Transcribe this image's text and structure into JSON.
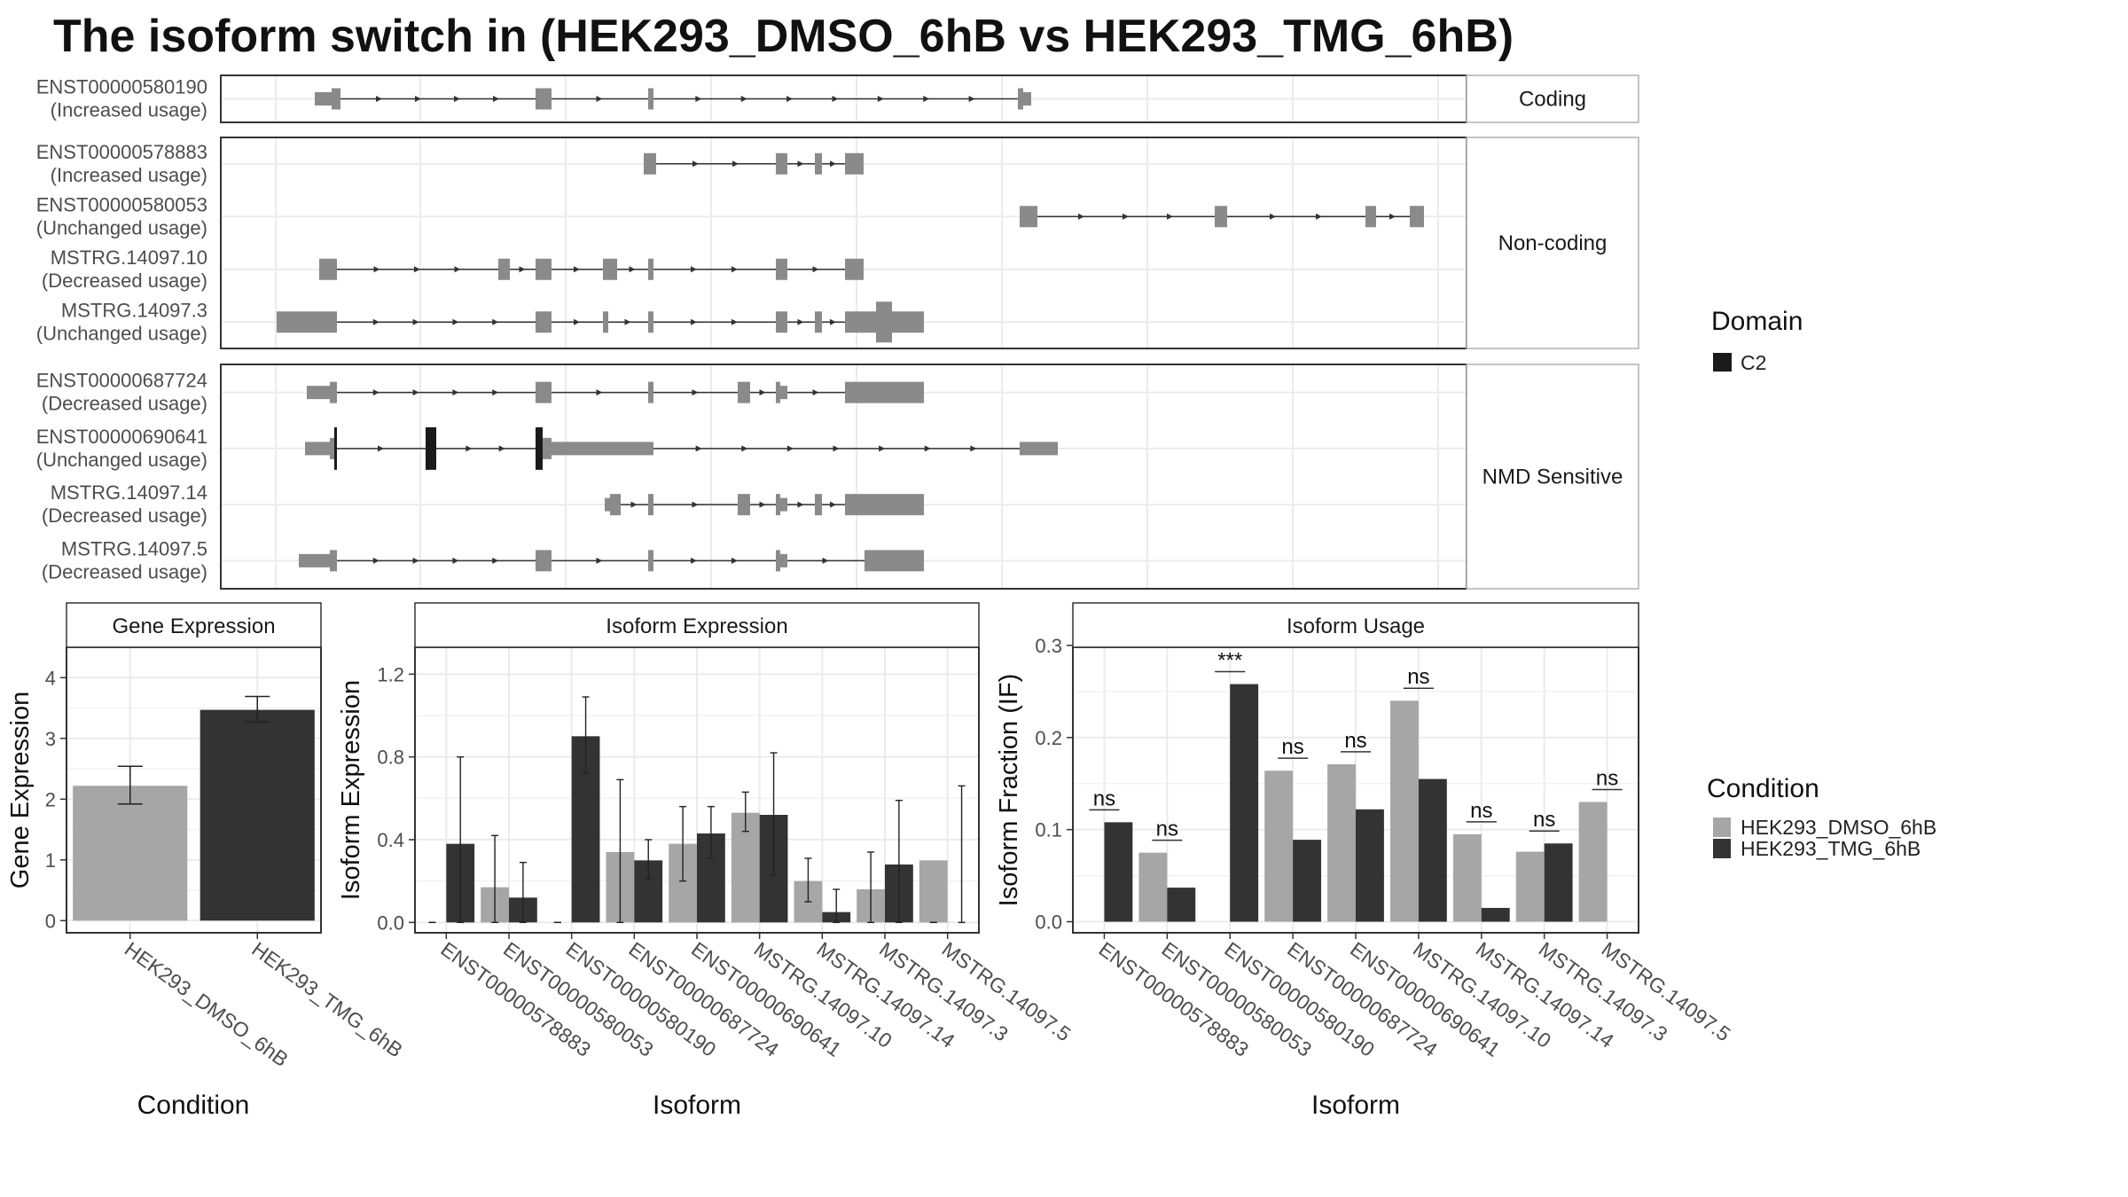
{
  "title": "The isoform switch in  (HEK293_DMSO_6hB vs HEK293_TMG_6hB)",
  "colors": {
    "exon": "#8a8a8a",
    "domain": "#1a1a1a",
    "dmso": "#a6a6a6",
    "tmg": "#333333",
    "grid": "#ebebeb",
    "strip_fill": "#ffffff",
    "panel_border": "#333333"
  },
  "transcript_panels": [
    {
      "strip": "Coding",
      "transcripts": [
        {
          "id": "ENST00000580190",
          "status": "(Increased usage)",
          "start": 355,
          "end": 1163,
          "exons": [
            [
              355,
              374,
              "s"
            ],
            [
              374,
              384,
              "t"
            ],
            [
              604,
              622,
              "t"
            ],
            [
              731,
              737,
              "t"
            ],
            [
              1148,
              1154,
              "t"
            ],
            [
              1154,
              1163,
              "s"
            ]
          ],
          "domains": []
        }
      ]
    },
    {
      "strip": "Non-coding",
      "transcripts": [
        {
          "id": "ENST00000578883",
          "status": "(Increased usage)",
          "start": 726,
          "end": 974,
          "exons": [
            [
              726,
              740,
              "t"
            ],
            [
              875,
              888,
              "t"
            ],
            [
              919,
              927,
              "t"
            ],
            [
              953,
              974,
              "t"
            ]
          ],
          "domains": []
        },
        {
          "id": "ENST00000580053",
          "status": "(Unchanged usage)",
          "start": 1150,
          "end": 1606,
          "exons": [
            [
              1150,
              1170,
              "t"
            ],
            [
              1370,
              1384,
              "t"
            ],
            [
              1540,
              1552,
              "t"
            ],
            [
              1590,
              1606,
              "t"
            ]
          ],
          "domains": []
        },
        {
          "id": "MSTRG.14097.10",
          "status": "(Decreased usage)",
          "start": 360,
          "end": 974,
          "exons": [
            [
              360,
              380,
              "t"
            ],
            [
              562,
              575,
              "t"
            ],
            [
              604,
              622,
              "t"
            ],
            [
              680,
              696,
              "t"
            ],
            [
              731,
              737,
              "t"
            ],
            [
              875,
              888,
              "t"
            ],
            [
              953,
              974,
              "t"
            ]
          ],
          "domains": []
        },
        {
          "id": "MSTRG.14097.3",
          "status": "(Unchanged usage)",
          "start": 312,
          "end": 1042,
          "exons": [
            [
              312,
              380,
              "t"
            ],
            [
              604,
              622,
              "t"
            ],
            [
              680,
              686,
              "t"
            ],
            [
              731,
              737,
              "t"
            ],
            [
              875,
              888,
              "t"
            ],
            [
              919,
              927,
              "t"
            ],
            [
              953,
              988,
              "t"
            ],
            [
              988,
              1006,
              "w"
            ],
            [
              1006,
              1042,
              "t"
            ]
          ],
          "domains": []
        }
      ]
    },
    {
      "strip": "NMD Sensitive",
      "transcripts": [
        {
          "id": "ENST00000687724",
          "status": "(Decreased usage)",
          "start": 346,
          "end": 1042,
          "exons": [
            [
              346,
              372,
              "s"
            ],
            [
              372,
              380,
              "t"
            ],
            [
              604,
              622,
              "t"
            ],
            [
              731,
              737,
              "t"
            ],
            [
              832,
              846,
              "t"
            ],
            [
              875,
              880,
              "t"
            ],
            [
              880,
              888,
              "s"
            ],
            [
              953,
              1042,
              "t"
            ]
          ],
          "domains": []
        },
        {
          "id": "ENST00000690641",
          "status": "(Unchanged usage)",
          "start": 344,
          "end": 1193,
          "exons": [
            [
              344,
              372,
              "s"
            ],
            [
              372,
              380,
              "t"
            ],
            [
              480,
              492,
              "t"
            ],
            [
              604,
              622,
              "t"
            ],
            [
              622,
              737,
              "s"
            ],
            [
              1150,
              1193,
              "s"
            ]
          ],
          "domains": [
            [
              377,
              380
            ],
            [
              480,
              492
            ],
            [
              604,
              612
            ]
          ]
        },
        {
          "id": "MSTRG.14097.14",
          "status": "(Decreased usage)",
          "start": 682,
          "end": 1042,
          "exons": [
            [
              682,
              688,
              "s"
            ],
            [
              688,
              700,
              "t"
            ],
            [
              731,
              737,
              "t"
            ],
            [
              832,
              846,
              "t"
            ],
            [
              875,
              880,
              "t"
            ],
            [
              880,
              888,
              "s"
            ],
            [
              919,
              927,
              "t"
            ],
            [
              953,
              1042,
              "t"
            ]
          ],
          "domains": []
        },
        {
          "id": "MSTRG.14097.5",
          "status": "(Decreased usage)",
          "start": 337,
          "end": 1042,
          "exons": [
            [
              337,
              372,
              "s"
            ],
            [
              372,
              380,
              "t"
            ],
            [
              604,
              622,
              "t"
            ],
            [
              731,
              737,
              "t"
            ],
            [
              875,
              880,
              "t"
            ],
            [
              880,
              888,
              "s"
            ],
            [
              975,
              1042,
              "t"
            ]
          ],
          "domains": []
        }
      ]
    }
  ],
  "domain_legend": {
    "title": "Domain",
    "items": [
      {
        "label": "C2",
        "color": "#1a1a1a"
      }
    ]
  },
  "condition_legend": {
    "title": "Condition",
    "items": [
      {
        "label": "HEK293_DMSO_6hB",
        "color": "#a6a6a6"
      },
      {
        "label": "HEK293_TMG_6hB",
        "color": "#333333"
      }
    ]
  },
  "chart_data": [
    {
      "type": "bar",
      "title": "Gene Expression",
      "xlabel": "Condition",
      "ylabel": "Gene Expression",
      "ylim": [
        -0.2,
        4.5
      ],
      "yticks": [
        0,
        1,
        2,
        3,
        4
      ],
      "categories": [
        "HEK293_DMSO_6hB",
        "HEK293_TMG_6hB"
      ],
      "values": [
        2.22,
        3.47
      ],
      "errors": [
        [
          1.92,
          2.54
        ],
        [
          3.27,
          3.69
        ]
      ],
      "grid": true
    },
    {
      "type": "bar",
      "title": "Isoform Expression",
      "xlabel": "Isoform",
      "ylabel": "Isoform Expression",
      "ylim": [
        -0.05,
        1.33
      ],
      "yticks": [
        0.0,
        0.4,
        0.8,
        1.2
      ],
      "categories": [
        "ENST00000578883",
        "ENST00000580053",
        "ENST00000580190",
        "ENST00000687724",
        "ENST00000690641",
        "MSTRG.14097.10",
        "MSTRG.14097.14",
        "MSTRG.14097.3",
        "MSTRG.14097.5"
      ],
      "series": [
        {
          "name": "HEK293_DMSO_6hB",
          "values": [
            0.0,
            0.17,
            0.0,
            0.34,
            0.38,
            0.53,
            0.2,
            0.16,
            0.3
          ],
          "errors": [
            [
              0.0,
              0.0
            ],
            [
              0.0,
              0.42
            ],
            [
              0.0,
              0.0
            ],
            [
              0.0,
              0.69
            ],
            [
              0.2,
              0.56
            ],
            [
              0.44,
              0.63
            ],
            [
              0.1,
              0.31
            ],
            [
              0.0,
              0.34
            ],
            [
              0.0,
              0.0
            ]
          ]
        },
        {
          "name": "HEK293_TMG_6hB",
          "values": [
            0.38,
            0.12,
            0.9,
            0.3,
            0.43,
            0.52,
            0.05,
            0.28,
            0.0
          ],
          "errors": [
            [
              0.0,
              0.8
            ],
            [
              0.0,
              0.29
            ],
            [
              0.72,
              1.09
            ],
            [
              0.21,
              0.4
            ],
            [
              0.31,
              0.56
            ],
            [
              0.23,
              0.82
            ],
            [
              0.0,
              0.16
            ],
            [
              0.0,
              0.59
            ],
            [
              0.0,
              0.66
            ]
          ]
        }
      ],
      "grid": true
    },
    {
      "type": "bar",
      "title": "Isoform Usage",
      "xlabel": "Isoform",
      "ylabel": "Isoform Fraction (IF)",
      "ylim": [
        -0.012,
        0.298
      ],
      "yticks": [
        0.0,
        0.1,
        0.2,
        0.3
      ],
      "categories": [
        "ENST00000578883",
        "ENST00000580053",
        "ENST00000580190",
        "ENST00000687724",
        "ENST00000690641",
        "MSTRG.14097.10",
        "MSTRG.14097.14",
        "MSTRG.14097.3",
        "MSTRG.14097.5"
      ],
      "series": [
        {
          "name": "HEK293_DMSO_6hB",
          "values": [
            0.0,
            0.075,
            0.0,
            0.164,
            0.171,
            0.24,
            0.095,
            0.076,
            0.13
          ]
        },
        {
          "name": "HEK293_TMG_6hB",
          "values": [
            0.108,
            0.037,
            0.258,
            0.089,
            0.122,
            0.155,
            0.015,
            0.085,
            0.0
          ]
        }
      ],
      "significance": [
        "ns",
        "ns",
        "***",
        "ns",
        "ns",
        "ns",
        "ns",
        "ns",
        "ns"
      ],
      "grid": true
    }
  ]
}
